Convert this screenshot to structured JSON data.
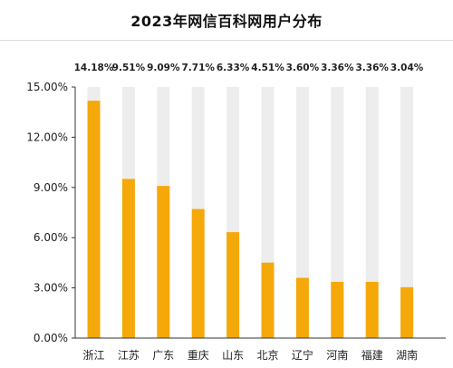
{
  "chart_data": {
    "type": "bar",
    "title": "2023年网信百科网用户分布",
    "categories": [
      "浙江",
      "江苏",
      "广东",
      "重庆",
      "山东",
      "北京",
      "辽宁",
      "河南",
      "福建",
      "湖南"
    ],
    "values": [
      14.18,
      9.51,
      9.09,
      7.71,
      6.33,
      4.51,
      3.6,
      3.36,
      3.36,
      3.04
    ],
    "data_labels": [
      "14.18%",
      "9.51%",
      "9.09%",
      "7.71%",
      "6.33%",
      "4.51%",
      "3.60%",
      "3.36%",
      "3.36%",
      "3.04%"
    ],
    "y_ticks": [
      0,
      3,
      6,
      9,
      12,
      15
    ],
    "y_tick_labels": [
      "0.00%",
      "3.00%",
      "6.00%",
      "9.00%",
      "12.00%",
      "15.00%"
    ],
    "ylim": [
      0,
      15
    ],
    "grid": false,
    "colors": {
      "bar": "#F5A80A",
      "track": "#EDEDED",
      "axis": "#333333"
    }
  }
}
